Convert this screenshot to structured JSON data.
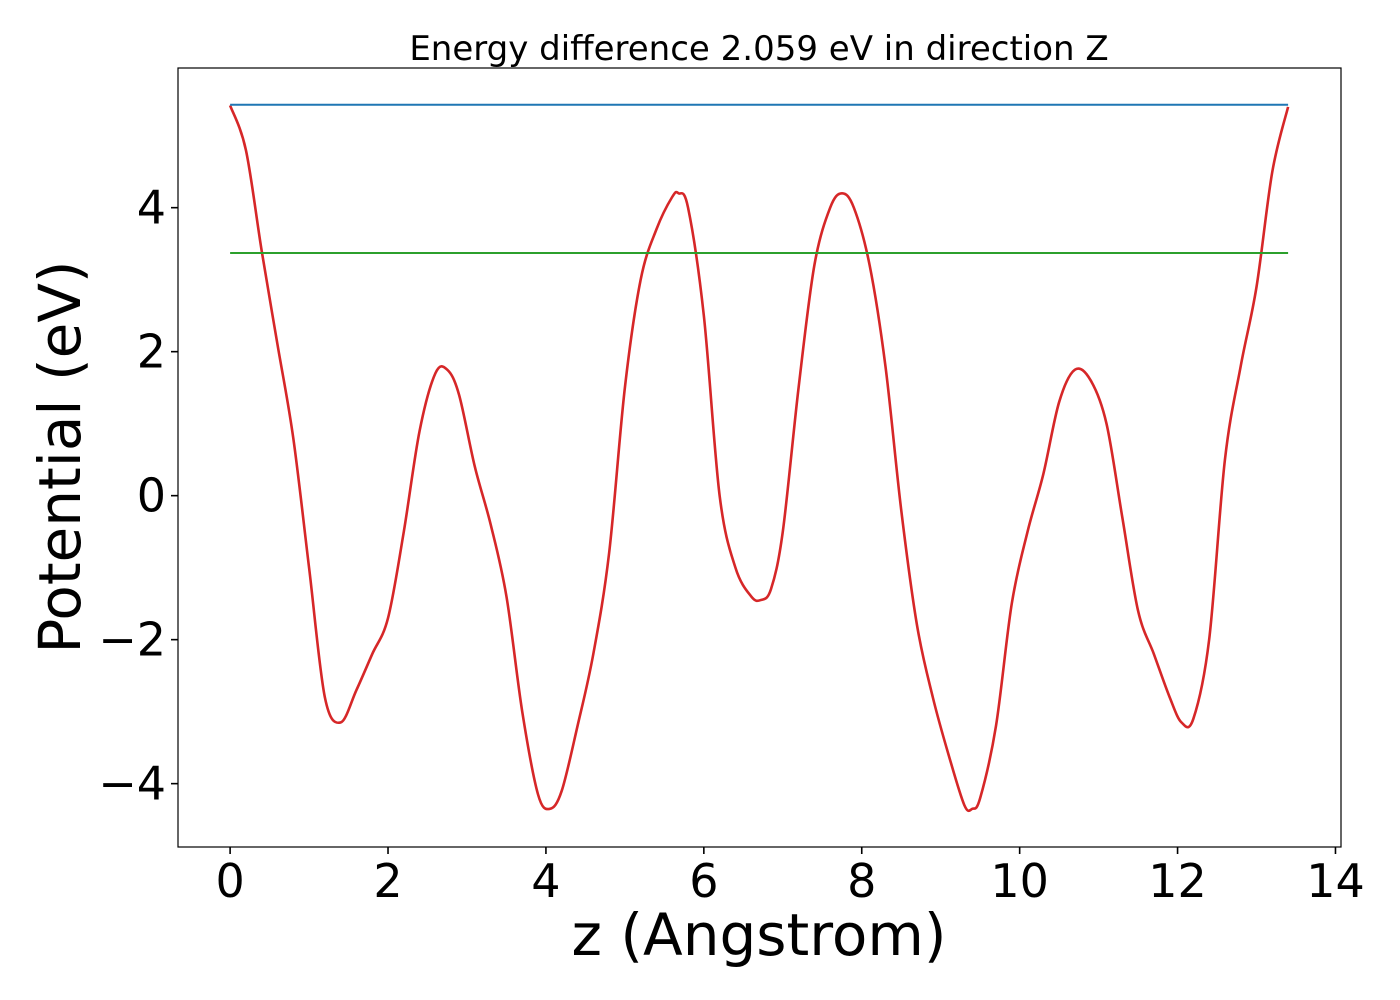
{
  "chart_data": {
    "type": "line",
    "title": "Energy difference 2.059 eV in direction Z",
    "xlabel": "z (Angstrom)",
    "ylabel": "Potential (eV)",
    "xlim": [
      -0.66,
      14.07
    ],
    "ylim": [
      -4.88,
      5.94
    ],
    "xticks": [
      0,
      2,
      4,
      6,
      8,
      10,
      12,
      14
    ],
    "xtick_labels": [
      "0",
      "2",
      "4",
      "6",
      "8",
      "10",
      "12",
      "14"
    ],
    "yticks": [
      -4,
      -2,
      0,
      2,
      4
    ],
    "ytick_labels": [
      "−4",
      "−2",
      "0",
      "2",
      "4"
    ],
    "grid": false,
    "series": [
      {
        "color": "#d62728",
        "x": [
          0,
          0.2,
          0.4,
          0.6,
          0.8,
          1.0,
          1.2,
          1.4,
          1.6,
          1.8,
          2.0,
          2.2,
          2.4,
          2.6,
          2.75,
          2.9,
          3.1,
          3.3,
          3.5,
          3.7,
          3.9,
          4.05,
          4.2,
          4.4,
          4.6,
          4.8,
          5.0,
          5.2,
          5.4,
          5.6,
          5.68,
          5.8,
          6.0,
          6.2,
          6.4,
          6.6,
          6.72,
          6.85,
          7.0,
          7.2,
          7.4,
          7.6,
          7.75,
          7.9,
          8.1,
          8.3,
          8.5,
          8.7,
          8.9,
          9.1,
          9.3,
          9.4,
          9.5,
          9.7,
          9.9,
          10.1,
          10.3,
          10.5,
          10.7,
          10.9,
          11.1,
          11.3,
          11.5,
          11.7,
          11.9,
          12.05,
          12.2,
          12.4,
          12.6,
          12.8,
          13.0,
          13.2,
          13.4
        ],
        "y": [
          5.42,
          4.8,
          3.4,
          2.1,
          0.8,
          -1.0,
          -2.8,
          -3.15,
          -2.7,
          -2.2,
          -1.7,
          -0.5,
          0.9,
          1.7,
          1.75,
          1.4,
          0.4,
          -0.4,
          -1.4,
          -3.0,
          -4.15,
          -4.35,
          -4.1,
          -3.2,
          -2.2,
          -0.8,
          1.5,
          3.0,
          3.7,
          4.15,
          4.2,
          4.0,
          2.5,
          0.0,
          -1.0,
          -1.4,
          -1.45,
          -1.3,
          -0.5,
          1.5,
          3.2,
          4.0,
          4.2,
          4.0,
          3.2,
          1.8,
          -0.2,
          -1.8,
          -2.8,
          -3.6,
          -4.3,
          -4.35,
          -4.2,
          -3.2,
          -1.5,
          -0.5,
          0.3,
          1.3,
          1.75,
          1.6,
          1.0,
          -0.3,
          -1.6,
          -2.2,
          -2.8,
          -3.15,
          -3.1,
          -2.0,
          0.5,
          1.8,
          2.9,
          4.5,
          5.4
        ]
      },
      {
        "color": "#1f77b4",
        "x": [
          0,
          13.4
        ],
        "y": [
          5.43,
          5.43
        ]
      },
      {
        "color": "#2ca02c",
        "x": [
          0,
          13.4
        ],
        "y": [
          3.37,
          3.37
        ]
      }
    ]
  }
}
